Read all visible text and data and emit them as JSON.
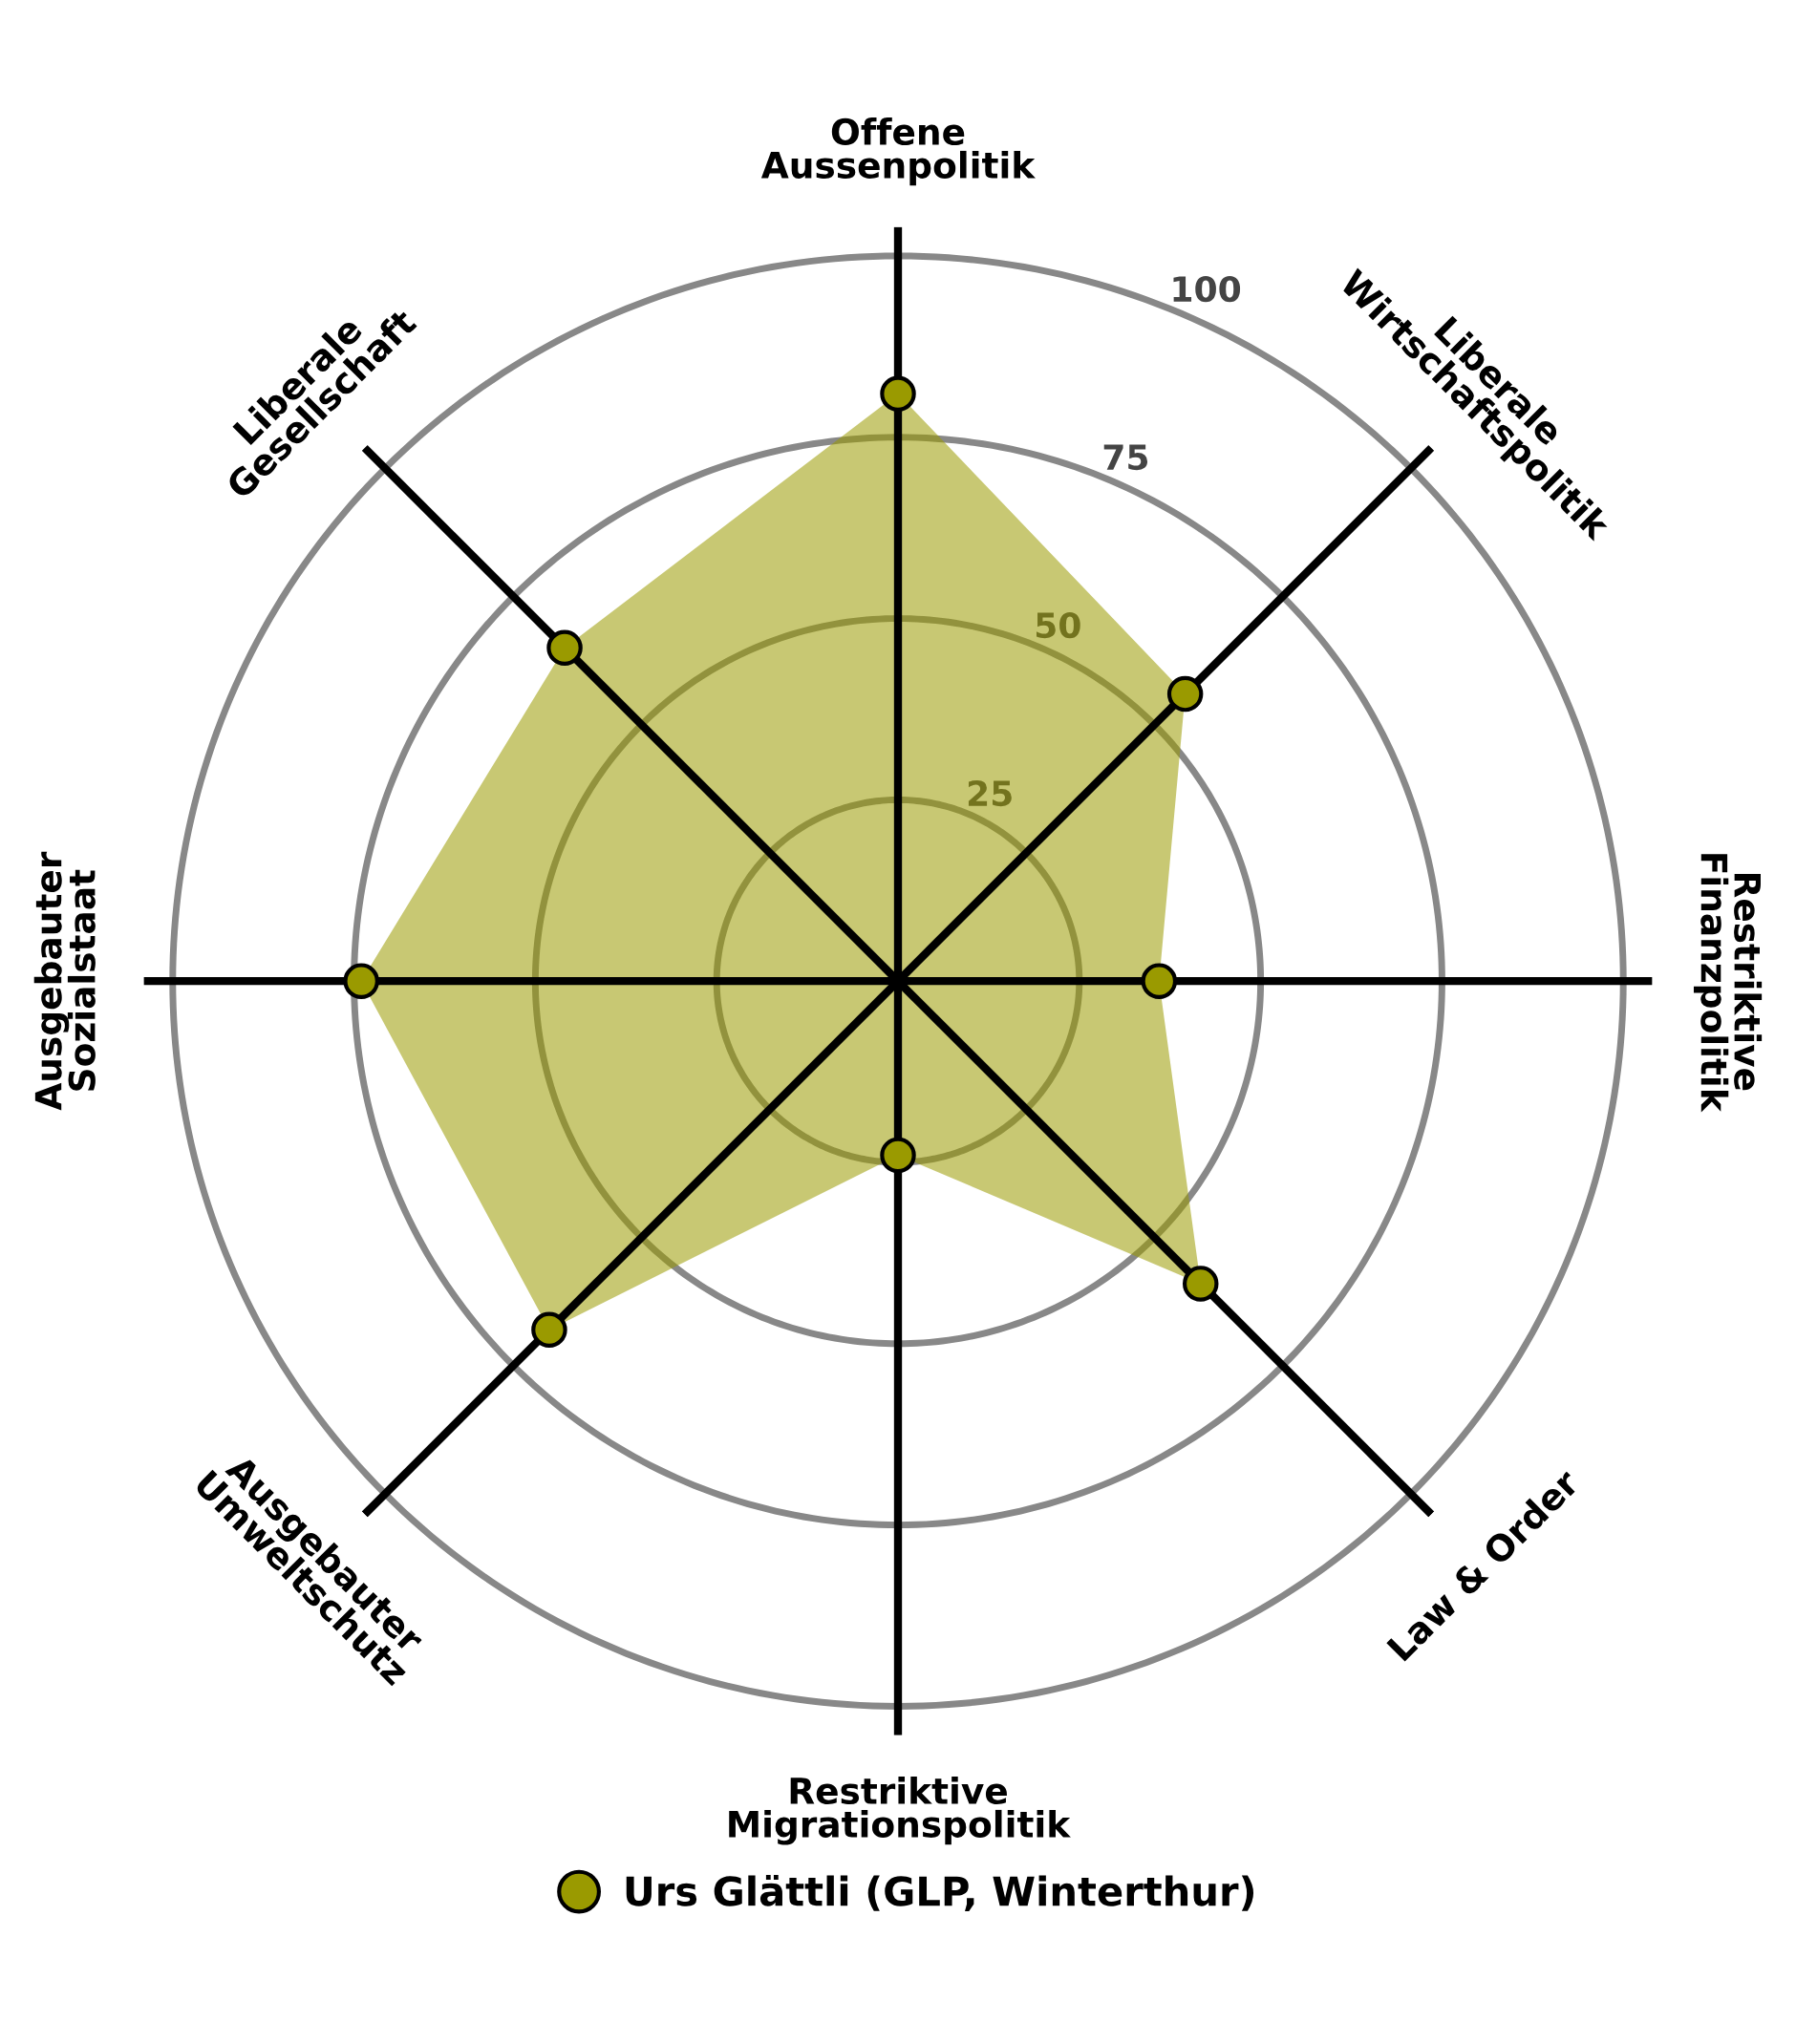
{
  "chart_data": {
    "type": "radar",
    "categories": [
      "Offene\nAussenpolitik",
      "Liberale\nWirtschaftspolitik",
      "Restriktive\nFinanzpolitik",
      "Law & Order",
      "Restriktive\nMigrationspolitik",
      "Ausgebauter\nUmweltschutz",
      "Ausgebauter\nSozialstaat",
      "Liberale\nGesellschaft"
    ],
    "series": [
      {
        "name": "Urs Glättli (GLP, Winterthur)",
        "color": "#9a9a00",
        "values": [
          81,
          56,
          36,
          59,
          24,
          68,
          74,
          65
        ]
      }
    ],
    "ylim": [
      0,
      104
    ],
    "yticks": [
      25,
      50,
      75,
      100
    ],
    "grid": true,
    "marker": "circle",
    "legend": "bottom"
  }
}
